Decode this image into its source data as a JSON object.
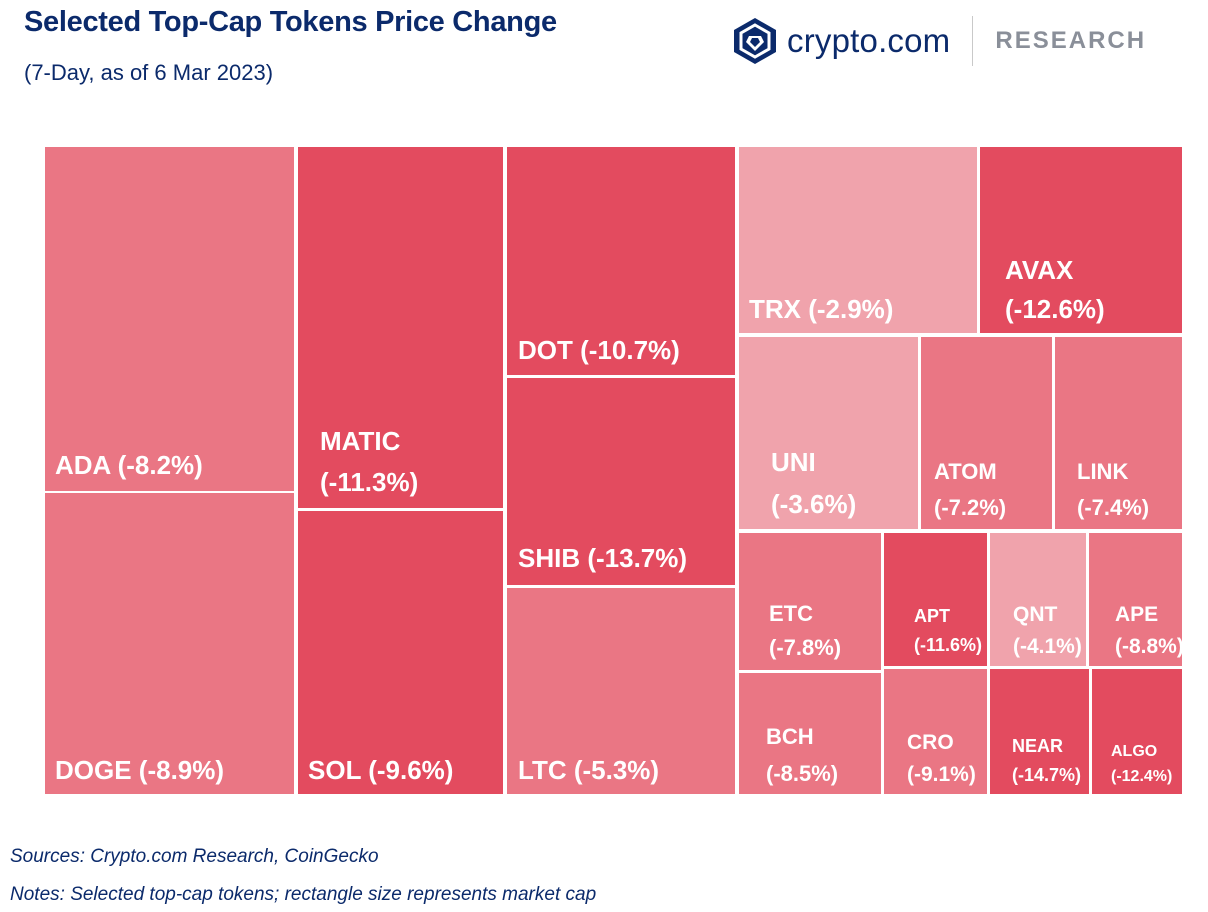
{
  "header": {
    "title": "Selected Top-Cap Tokens Price Change",
    "subtitle": "(7-Day, as of 6 Mar 2023)"
  },
  "logo": {
    "icon": "crypto-com-shield-icon",
    "brand": "crypto.com",
    "section": "RESEARCH"
  },
  "footer": {
    "sources": "Sources: Crypto.com Research, CoinGecko",
    "notes": "Notes: Selected top-cap tokens; rectangle size represents market cap"
  },
  "colors": {
    "strong": "#e34b5f",
    "medium": "#ea7684",
    "light": "#f0a3ac",
    "text": "#0b2a6b"
  },
  "chart_data": {
    "type": "treemap",
    "title": "Selected Top-Cap Tokens Price Change",
    "subtitle": "(7-Day, as of 6 Mar 2023)",
    "items": [
      {
        "token": "ADA",
        "change": -8.2,
        "lines": [
          "ADA (-8.2%)"
        ]
      },
      {
        "token": "DOGE",
        "change": -8.9,
        "lines": [
          "DOGE (-8.9%)"
        ]
      },
      {
        "token": "MATIC",
        "change": -11.3,
        "lines": [
          "MATIC",
          "(-11.3%)"
        ]
      },
      {
        "token": "SOL",
        "change": -9.6,
        "lines": [
          "SOL (-9.6%)"
        ]
      },
      {
        "token": "DOT",
        "change": -10.7,
        "lines": [
          "DOT (-10.7%)"
        ]
      },
      {
        "token": "SHIB",
        "change": -13.7,
        "lines": [
          "SHIB (-13.7%)"
        ]
      },
      {
        "token": "LTC",
        "change": -5.3,
        "lines": [
          "LTC (-5.3%)"
        ]
      },
      {
        "token": "TRX",
        "change": -2.9,
        "lines": [
          "TRX (-2.9%)"
        ]
      },
      {
        "token": "AVAX",
        "change": -12.6,
        "lines": [
          "AVAX",
          "(-12.6%)"
        ]
      },
      {
        "token": "UNI",
        "change": -3.6,
        "lines": [
          "UNI",
          "(-3.6%)"
        ]
      },
      {
        "token": "ATOM",
        "change": -7.2,
        "lines": [
          "ATOM",
          "(-7.2%)"
        ]
      },
      {
        "token": "LINK",
        "change": -7.4,
        "lines": [
          "LINK",
          "(-7.4%)"
        ]
      },
      {
        "token": "ETC",
        "change": -7.8,
        "lines": [
          "ETC",
          "(-7.8%)"
        ]
      },
      {
        "token": "APT",
        "change": -11.6,
        "lines": [
          "APT",
          "(-11.6%)"
        ]
      },
      {
        "token": "QNT",
        "change": -4.1,
        "lines": [
          "QNT",
          "(-4.1%)"
        ]
      },
      {
        "token": "APE",
        "change": -8.8,
        "lines": [
          "APE",
          "(-8.8%)"
        ]
      },
      {
        "token": "BCH",
        "change": -8.5,
        "lines": [
          "BCH",
          "(-8.5%)"
        ]
      },
      {
        "token": "CRO",
        "change": -9.1,
        "lines": [
          "CRO",
          "(-9.1%)"
        ]
      },
      {
        "token": "NEAR",
        "change": -14.7,
        "lines": [
          "NEAR",
          "(-14.7%)"
        ]
      },
      {
        "token": "ALGO",
        "change": -12.4,
        "lines": [
          "ALGO",
          "(-12.4%)"
        ]
      }
    ]
  }
}
